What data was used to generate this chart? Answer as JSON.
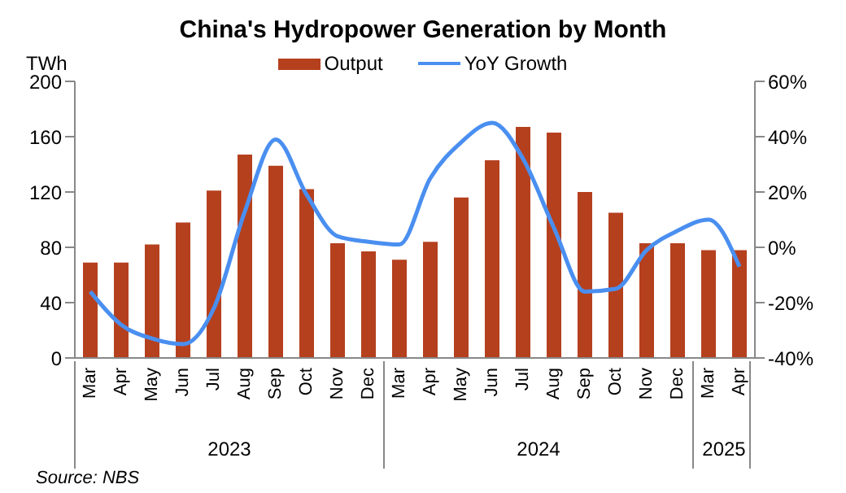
{
  "chart_data": {
    "type": "bar",
    "title": "China's Hydropower Generation by Month",
    "ylabel": "TWh",
    "categories": [
      "Mar",
      "Apr",
      "May",
      "Jun",
      "Jul",
      "Aug",
      "Sep",
      "Oct",
      "Nov",
      "Dec",
      "Mar",
      "Apr",
      "May",
      "Jun",
      "Jul",
      "Aug",
      "Sep",
      "Oct",
      "Nov",
      "Dec",
      "Mar",
      "Apr"
    ],
    "series": [
      {
        "name": "Output",
        "color": "#b5401e",
        "values": [
          69,
          69,
          82,
          98,
          121,
          147,
          139,
          122,
          83,
          77,
          71,
          84,
          116,
          143,
          167,
          163,
          120,
          105,
          83,
          83,
          78,
          78
        ]
      },
      {
        "name": "YoY Growth",
        "type": "line",
        "axis": "y2",
        "color": "#4a8ff0",
        "values": [
          -16,
          -28,
          -33,
          -35,
          -22,
          13,
          39,
          19,
          4,
          2,
          1,
          25,
          38,
          45,
          32,
          7,
          -16,
          -15,
          -1,
          6,
          10,
          -7
        ]
      }
    ],
    "ylim": [
      0,
      200
    ],
    "yticks": [
      0,
      40,
      80,
      120,
      160,
      200
    ],
    "y2lim": [
      -40,
      60
    ],
    "y2ticks": [
      {
        "value": -40,
        "label": "-40%"
      },
      {
        "value": -20,
        "label": "-20%"
      },
      {
        "value": 0,
        "label": "0%"
      },
      {
        "value": 20,
        "label": "20%"
      },
      {
        "value": 40,
        "label": "40%"
      },
      {
        "value": 60,
        "label": "60%"
      }
    ],
    "grid": false,
    "legend": "top",
    "marker": "none",
    "line_style": "solid",
    "annotations": [
      "2023",
      "2024",
      "2025",
      "Source: NBS"
    ]
  }
}
